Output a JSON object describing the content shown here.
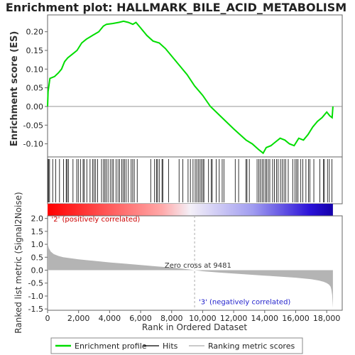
{
  "chart_data": {
    "type": "line",
    "title": "Enrichment plot: HALLMARK_BILE_ACID_METABOLISM",
    "xlabel": "Rank in Ordered Dataset",
    "x_ticks": [
      "0",
      "2,000",
      "4,000",
      "6,000",
      "8,000",
      "10,000",
      "12,000",
      "14,000",
      "16,000",
      "18,000"
    ],
    "x_tick_values": [
      0,
      2000,
      4000,
      6000,
      8000,
      10000,
      12000,
      14000,
      16000,
      18000
    ],
    "xlim": [
      0,
      19000
    ],
    "es_panel": {
      "ylabel": "Enrichment score (ES)",
      "ylim": [
        -0.135,
        0.245
      ],
      "y_ticks": [
        "0.20",
        "0.15",
        "0.10",
        "0.05",
        "0.00",
        "-0.05",
        "-0.10"
      ],
      "y_tick_values": [
        0.2,
        0.15,
        0.1,
        0.05,
        0.0,
        -0.05,
        -0.1
      ],
      "series": [
        {
          "name": "Enrichment profile",
          "color": "#00dd00",
          "x": [
            0,
            30,
            150,
            450,
            700,
            900,
            1100,
            1300,
            1600,
            1900,
            2200,
            2500,
            2900,
            3300,
            3600,
            3800,
            4200,
            4600,
            4900,
            5200,
            5500,
            5700,
            6000,
            6400,
            6800,
            7200,
            7600,
            8000,
            8500,
            9000,
            9481,
            10000,
            10500,
            11000,
            11500,
            12000,
            12400,
            12800,
            13200,
            13600,
            13900,
            14100,
            14400,
            14700,
            15000,
            15300,
            15600,
            15900,
            16200,
            16500,
            16800,
            17100,
            17400,
            17700,
            18000,
            18200,
            18350,
            18400
          ],
          "y": [
            0.0,
            0.04,
            0.075,
            0.08,
            0.09,
            0.1,
            0.12,
            0.13,
            0.14,
            0.15,
            0.17,
            0.18,
            0.19,
            0.2,
            0.215,
            0.22,
            0.222,
            0.225,
            0.228,
            0.225,
            0.22,
            0.225,
            0.21,
            0.19,
            0.175,
            0.17,
            0.155,
            0.135,
            0.11,
            0.085,
            0.055,
            0.03,
            0.0,
            -0.02,
            -0.04,
            -0.06,
            -0.075,
            -0.09,
            -0.1,
            -0.115,
            -0.125,
            -0.11,
            -0.105,
            -0.095,
            -0.085,
            -0.09,
            -0.1,
            -0.105,
            -0.085,
            -0.09,
            -0.075,
            -0.055,
            -0.04,
            -0.03,
            -0.015,
            -0.025,
            -0.03,
            0.0
          ]
        }
      ]
    },
    "hits": [
      15,
      60,
      130,
      330,
      520,
      770,
      1030,
      1200,
      1260,
      1350,
      1640,
      1880,
      1980,
      2120,
      2290,
      2360,
      2530,
      2740,
      2900,
      3000,
      3100,
      3230,
      3480,
      3610,
      3700,
      3790,
      3900,
      4040,
      4160,
      4250,
      4420,
      4540,
      4640,
      4780,
      4880,
      4970,
      5070,
      5210,
      5390,
      5490,
      5590,
      5780,
      6650,
      6900,
      7020,
      7090,
      7200,
      7380,
      7430,
      7800,
      8480,
      8720,
      9060,
      9210,
      9380,
      9520,
      9620,
      9720,
      9830,
      9920,
      10020,
      10080,
      10380,
      10550,
      10620,
      10870,
      11070,
      11260,
      11370,
      12100,
      12320,
      12790,
      12860,
      13010,
      13510,
      13620,
      13720,
      13830,
      13920,
      14040,
      14120,
      14230,
      14330,
      14510,
      14630,
      14770,
      14870,
      15020,
      15140,
      15250,
      15350,
      15520,
      15810,
      15960,
      16060,
      16150,
      16330,
      16460,
      16660,
      16830,
      16910,
      17170,
      17560,
      17790,
      17850,
      18050,
      18170,
      18340
    ],
    "color_bar": {
      "stops": [
        {
          "pos": 0.0,
          "color": "#ff0000"
        },
        {
          "pos": 0.4,
          "color": "#ffa8a8"
        },
        {
          "pos": 0.5,
          "color": "#f4f0f8"
        },
        {
          "pos": 0.72,
          "color": "#a09cf0"
        },
        {
          "pos": 0.92,
          "color": "#2b12d8"
        },
        {
          "pos": 1.0,
          "color": "#1400aa"
        }
      ]
    },
    "metric_panel": {
      "ylabel": "Ranked list metric (Signal2Noise)",
      "ylim": [
        -1.55,
        2.1
      ],
      "y_ticks": [
        "2.0",
        "1.5",
        "1.0",
        "0.5",
        "0.0",
        "-0.5",
        "-1.0",
        "-1.5"
      ],
      "y_tick_values": [
        2.0,
        1.5,
        1.0,
        0.5,
        0.0,
        -0.5,
        -1.0,
        -1.5
      ],
      "fill_color": "#b4b4b4",
      "x": [
        0,
        20,
        80,
        200,
        400,
        700,
        1000,
        2000,
        3000,
        4000,
        5000,
        6000,
        7000,
        8000,
        9000,
        9481,
        10000,
        11000,
        12000,
        13000,
        14000,
        15000,
        16000,
        17000,
        17500,
        17800,
        18000,
        18150,
        18250,
        18300,
        18350,
        18400
      ],
      "y": [
        1.65,
        1.0,
        0.85,
        0.72,
        0.62,
        0.55,
        0.5,
        0.42,
        0.36,
        0.3,
        0.25,
        0.2,
        0.15,
        0.1,
        0.04,
        0.0,
        -0.04,
        -0.09,
        -0.13,
        -0.17,
        -0.21,
        -0.25,
        -0.29,
        -0.35,
        -0.4,
        -0.45,
        -0.5,
        -0.56,
        -0.64,
        -0.75,
        -0.95,
        -1.45
      ],
      "annotations": [
        {
          "text": "'2' (positively correlated)",
          "color": "#cc0000",
          "x": 250,
          "y": 1.88
        },
        {
          "text": "Zero cross at 9481",
          "x": 7550,
          "y": 0.1
        },
        {
          "text": "'3' (negatively correlated)",
          "color": "#2222cc",
          "x": 9750,
          "y": -1.32
        }
      ],
      "zero_cross": 9481
    },
    "legend": {
      "placement": "bottom",
      "entries": [
        {
          "label": "Enrichment profile",
          "color": "#00dd00",
          "kind": "line"
        },
        {
          "label": "Hits",
          "color": "#000000",
          "kind": "line"
        },
        {
          "label": "Ranking metric scores",
          "color": "#aaaaaa",
          "kind": "line"
        }
      ]
    }
  }
}
